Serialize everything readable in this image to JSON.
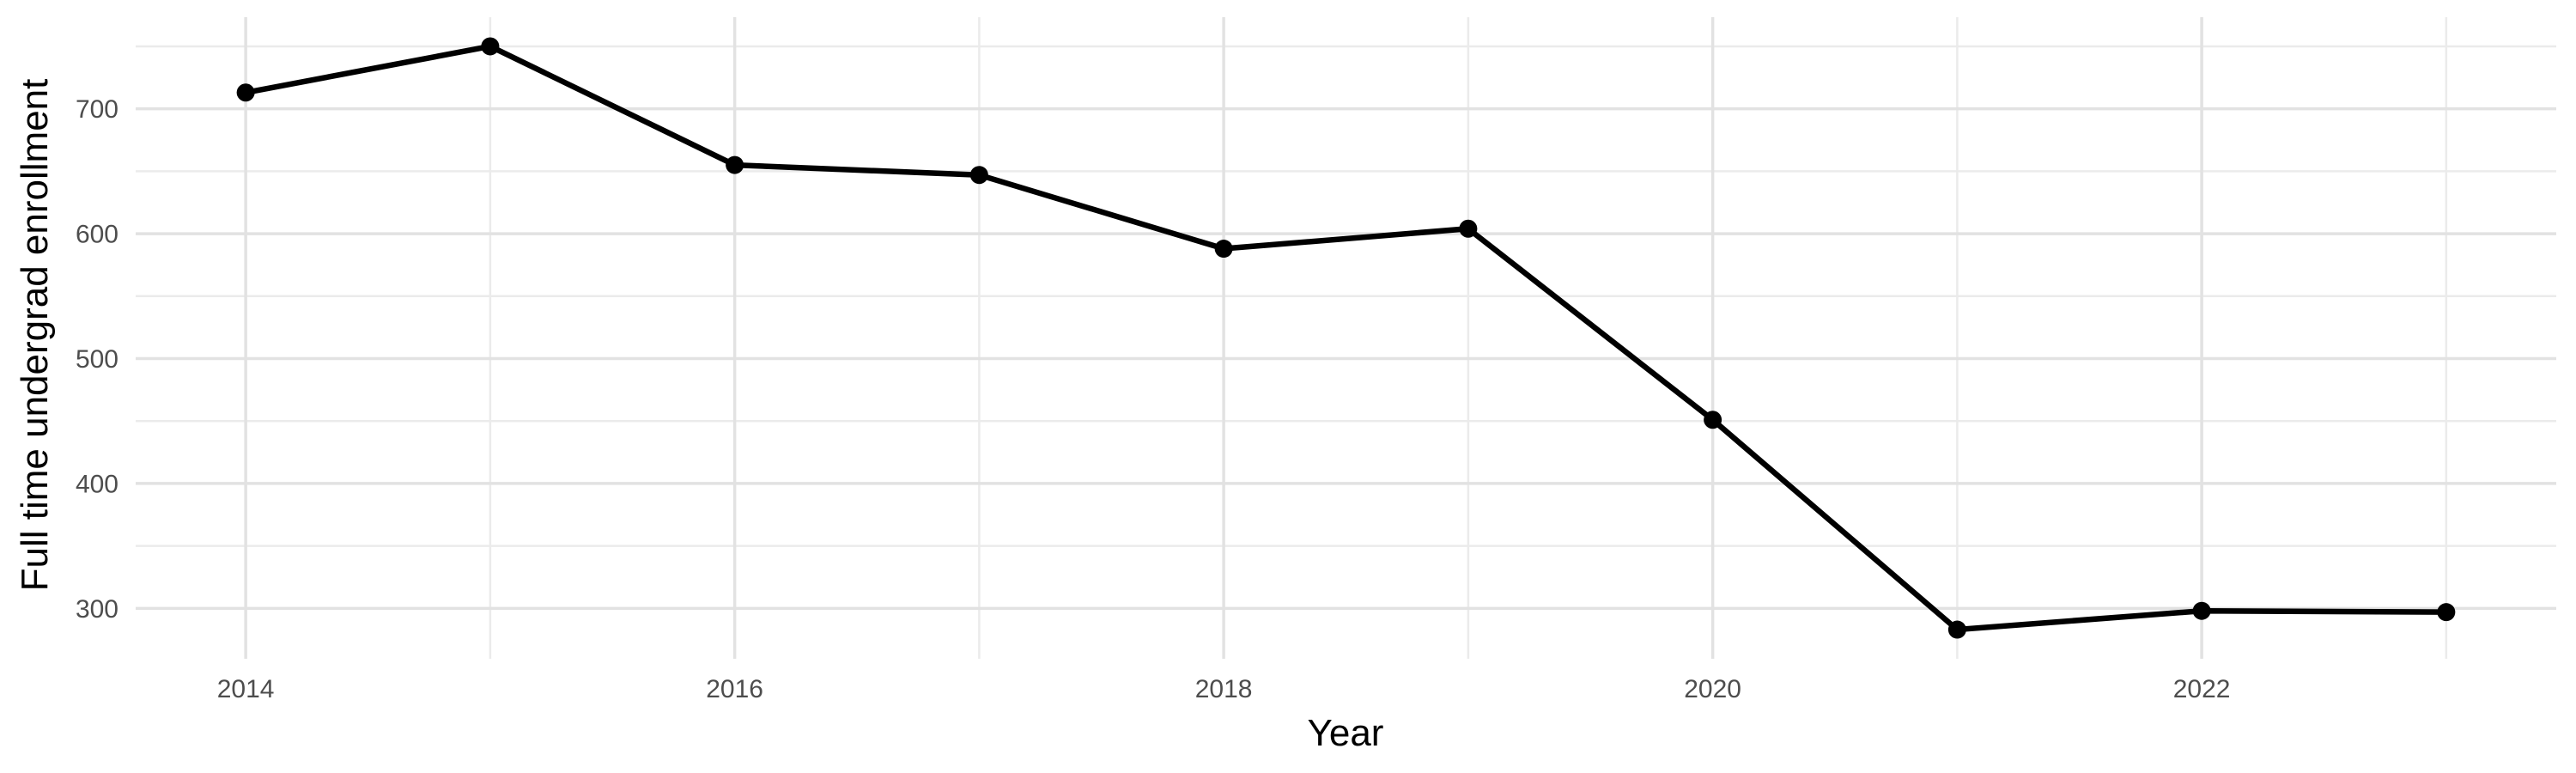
{
  "chart_data": {
    "type": "line",
    "xlabel": "Year",
    "ylabel": "Full time undergrad enrollment",
    "x": [
      2014,
      2015,
      2016,
      2017,
      2018,
      2019,
      2020,
      2021,
      2022,
      2023
    ],
    "values": [
      713,
      750,
      655,
      647,
      588,
      604,
      451,
      283,
      298,
      297
    ],
    "x_major_ticks": [
      2014,
      2016,
      2018,
      2020,
      2022
    ],
    "x_minor_gridlines": [
      2015,
      2017,
      2019,
      2021,
      2023
    ],
    "y_major_ticks": [
      300,
      400,
      500,
      600,
      700
    ],
    "y_minor_gridlines": [
      350,
      450,
      550,
      650,
      750
    ],
    "xlim": [
      2013.55,
      2023.45
    ],
    "ylim": [
      259.65,
      773.35
    ],
    "grid": "on",
    "legend": "none",
    "marker": "point",
    "colors": {
      "line": "#000000",
      "point": "#000000",
      "grid_major": "#E2E2E2",
      "grid_minor": "#EBEBEB",
      "tick_label": "#4D4D4D",
      "axis_title": "#000000",
      "background": "#FFFFFF"
    }
  }
}
